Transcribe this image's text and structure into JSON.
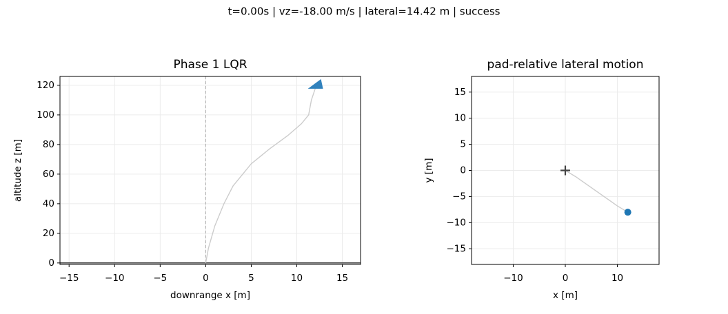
{
  "suptitle": "t=0.00s | vz=-18.00 m/s | lateral=14.42 m | success",
  "chart_data": [
    {
      "type": "line",
      "title": "Phase 1 LQR",
      "x_label": "downrange x [m]",
      "y_label": "altitude z [m]",
      "xlim": [
        -16,
        17
      ],
      "ylim": [
        -1,
        126
      ],
      "xticks": [
        {
          "value": -15,
          "label": "−15"
        },
        {
          "value": -10,
          "label": "−10"
        },
        {
          "value": -5,
          "label": "−5"
        },
        0,
        5,
        10,
        15
      ],
      "yticks": [
        0,
        20,
        40,
        60,
        80,
        100,
        120
      ],
      "grid": true,
      "vline": 0,
      "hline": 0,
      "series": [
        {
          "color": "#cccccc",
          "marker": "none",
          "x": [
            0,
            0.3,
            1,
            2,
            3,
            5,
            7,
            9,
            10.5,
            11.3,
            11.6,
            12.2
          ],
          "values": [
            0,
            10,
            25,
            40,
            52,
            67,
            77,
            86,
            94,
            100,
            110,
            121
          ]
        },
        {
          "color": "#3182bd",
          "marker": "triangle",
          "x": [
            12.2
          ],
          "values": [
            120
          ]
        }
      ]
    },
    {
      "type": "line",
      "title": "pad-relative lateral motion",
      "x_label": "x [m]",
      "y_label": "y [m]",
      "xlim": [
        -18,
        18
      ],
      "ylim": [
        -18,
        18
      ],
      "xticks": [
        {
          "value": -10,
          "label": "−10"
        },
        0,
        10
      ],
      "yticks": [
        {
          "value": -15,
          "label": "−15"
        },
        {
          "value": -10,
          "label": "−10"
        },
        {
          "value": -5,
          "label": "−5"
        },
        0,
        5,
        10,
        15
      ],
      "grid": true,
      "series": [
        {
          "color": "#cccccc",
          "marker": "none",
          "x": [
            0,
            2,
            4,
            6,
            8,
            10,
            12
          ],
          "values": [
            0,
            -1.2,
            -2.6,
            -4,
            -5.4,
            -6.8,
            -8
          ]
        },
        {
          "color": "#444444",
          "marker": "plus",
          "x": [
            0
          ],
          "values": [
            0
          ]
        },
        {
          "color": "#1f77b4",
          "marker": "circle",
          "x": [
            12
          ],
          "values": [
            -8
          ]
        }
      ]
    }
  ]
}
